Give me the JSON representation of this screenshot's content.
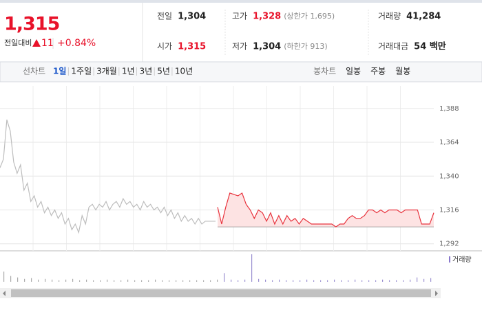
{
  "header": {
    "price": "1,315",
    "change_label": "전일대비",
    "change": "11",
    "change_pct": "+0.84%",
    "info": [
      [
        {
          "label": "전일",
          "value": "1,304"
        },
        {
          "label": "고가",
          "value": "1,328",
          "note": "(상한가 1,695)"
        },
        {
          "label": "거래량",
          "value": "41,284"
        }
      ],
      [
        {
          "label": "시가",
          "value": "1,315"
        },
        {
          "label": "저가",
          "value": "1,304",
          "note": "(하한가 913)"
        },
        {
          "label": "거래대금",
          "value": "54 백만"
        }
      ]
    ]
  },
  "tabs": {
    "line_label": "선차트",
    "periods": [
      "1일",
      "1주일",
      "3개월",
      "1년",
      "3년",
      "5년",
      "10년"
    ],
    "selected": 0,
    "candle_label": "봉차트",
    "candles": [
      "일봉",
      "주봉",
      "월봉"
    ]
  },
  "chart": {
    "ylim": [
      1287,
      1404
    ],
    "yticks": [
      {
        "value": 1388,
        "label": "1,388"
      },
      {
        "value": 1364,
        "label": "1,364"
      },
      {
        "value": 1340,
        "label": "1,340"
      },
      {
        "value": 1316,
        "label": "1,316"
      },
      {
        "value": 1292,
        "label": "1,292"
      }
    ],
    "baseline": 1304,
    "previous": [
      1346,
      1352,
      1380,
      1372,
      1350,
      1342,
      1348,
      1330,
      1335,
      1322,
      1326,
      1318,
      1322,
      1314,
      1318,
      1312,
      1316,
      1310,
      1314,
      1306,
      1310,
      1302,
      1306,
      1300,
      1312,
      1306,
      1318,
      1320,
      1316,
      1320,
      1318,
      1322,
      1316,
      1320,
      1322,
      1318,
      1324,
      1320,
      1322,
      1318,
      1320,
      1316,
      1322,
      1318,
      1320,
      1316,
      1318,
      1314,
      1318,
      1312,
      1316,
      1310,
      1314,
      1308,
      1312,
      1308,
      1310,
      1306,
      1310,
      1306,
      1308,
      1308,
      1308,
      1308
    ],
    "today": [
      1318,
      1306,
      1318,
      1328,
      1327,
      1326,
      1328,
      1320,
      1316,
      1310,
      1316,
      1314,
      1308,
      1314,
      1306,
      1312,
      1306,
      1312,
      1308,
      1310,
      1306,
      1310,
      1308,
      1306,
      1306,
      1306,
      1306,
      1306,
      1306,
      1304,
      1306,
      1306,
      1310,
      1312,
      1310,
      1310,
      1312,
      1316,
      1316,
      1314,
      1316,
      1314,
      1316,
      1316,
      1316,
      1314,
      1316,
      1316,
      1316,
      1316,
      1306,
      1306,
      1306,
      1314
    ],
    "volume_legend": "거래량",
    "volume": [
      14,
      8,
      6,
      4,
      5,
      3,
      4,
      3,
      2,
      3,
      4,
      2,
      3,
      2,
      2,
      3,
      2,
      2,
      3,
      2,
      2,
      2,
      3,
      2,
      2,
      2,
      2,
      2,
      2,
      2,
      2,
      3,
      12,
      3,
      2,
      3,
      38,
      4,
      3,
      2,
      3,
      2,
      2,
      2,
      3,
      2,
      2,
      2,
      3,
      2,
      2,
      3,
      2,
      2,
      2,
      3,
      2,
      2,
      2,
      3,
      6,
      4,
      5
    ]
  }
}
